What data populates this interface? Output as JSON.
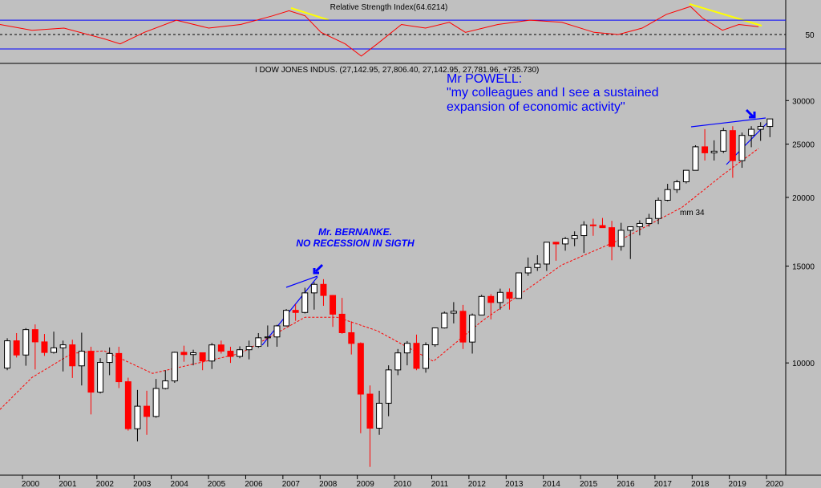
{
  "chart_data": [
    {
      "type": "line",
      "title": "Relative Strength Index(64.6214)",
      "color": "#ff0000",
      "x": [
        1999.18,
        2000.04,
        2000.9,
        2001.98,
        2002.41,
        2003.06,
        2003.92,
        2004.79,
        2005.65,
        2006.51,
        2006.95,
        2007.38,
        2007.81,
        2008.46,
        2008.89,
        2009.32,
        2009.97,
        2010.62,
        2011.26,
        2011.69,
        2012.56,
        2013.42,
        2014.28,
        2015.15,
        2015.8,
        2016.44,
        2017.09,
        2017.74,
        2018.06,
        2018.6,
        2019.04,
        2019.57
      ],
      "values": [
        64,
        56,
        59,
        44,
        37,
        53,
        70,
        59,
        64,
        76,
        83,
        76,
        53,
        37,
        20,
        37,
        64,
        59,
        67,
        53,
        64,
        70,
        67,
        53,
        50,
        59,
        78,
        89,
        73,
        56,
        64,
        61
      ],
      "xlim": [
        1999.18,
        2020.3
      ],
      "ylim": [
        11,
        98
      ],
      "yticks": [
        50
      ],
      "bands": [
        30,
        70
      ],
      "band_color": "#0000ff",
      "grid": true
    },
    {
      "type": "candlestick",
      "title": "I DOW JONES INDUS. (27,142.95, 27,806.40, 27,142.95, 27,781.96, +735.730)",
      "up_color": "#ffffff",
      "down_color": "#ff0000",
      "x": [
        1999.375,
        1999.625,
        1999.875,
        2000.125,
        2000.375,
        2000.625,
        2000.875,
        2001.125,
        2001.375,
        2001.625,
        2001.875,
        2002.125,
        2002.375,
        2002.625,
        2002.875,
        2003.125,
        2003.375,
        2003.625,
        2003.875,
        2004.125,
        2004.375,
        2004.625,
        2004.875,
        2005.125,
        2005.375,
        2005.625,
        2005.875,
        2006.125,
        2006.375,
        2006.625,
        2006.875,
        2007.125,
        2007.375,
        2007.625,
        2007.875,
        2008.125,
        2008.375,
        2008.625,
        2008.875,
        2009.125,
        2009.375,
        2009.625,
        2009.875,
        2010.125,
        2010.375,
        2010.625,
        2010.875,
        2011.125,
        2011.375,
        2011.625,
        2011.875,
        2012.125,
        2012.375,
        2012.625,
        2012.875,
        2013.125,
        2013.375,
        2013.625,
        2013.875,
        2014.125,
        2014.375,
        2014.625,
        2014.875,
        2015.125,
        2015.375,
        2015.625,
        2015.875,
        2016.125,
        2016.375,
        2016.625,
        2016.875,
        2017.125,
        2017.375,
        2017.625,
        2017.875,
        2018.125,
        2018.375,
        2018.625,
        2018.875,
        2019.125,
        2019.375,
        2019.625,
        2019.875
      ],
      "open": [
        9786,
        10970,
        10337,
        11497,
        10922,
        10448,
        10651,
        10787,
        9879,
        10502,
        8848,
        10021,
        10404,
        9243,
        7592,
        8342,
        7992,
        8985,
        9275,
        10454,
        10357,
        10435,
        10080,
        10783,
        10504,
        10275,
        10569,
        10718,
        11109,
        11150,
        11679,
        12463,
        12354,
        13409,
        13896,
        13265,
        12263,
        11350,
        10851,
        8776,
        7609,
        8447,
        9712,
        10428,
        10857,
        9774,
        10788,
        11578,
        12320,
        12414,
        10913,
        12218,
        13212,
        12880,
        13437,
        13104,
        14579,
        14910,
        15130,
        16577,
        16458,
        16827,
        17043,
        17823,
        17776,
        17620,
        16285,
        17425,
        17685,
        17930,
        18308,
        19763,
        20663,
        21350,
        22405,
        24719,
        24103,
        24271,
        26458,
        23327,
        25929,
        26600,
        26917
      ],
      "high": [
        11090,
        11330,
        11570,
        11750,
        11290,
        11400,
        10980,
        11020,
        11350,
        10700,
        10200,
        10670,
        10700,
        9400,
        8930,
        8900,
        9350,
        9700,
        10480,
        10750,
        10570,
        10450,
        10870,
        10980,
        10700,
        10720,
        10980,
        11330,
        11700,
        11730,
        12530,
        12800,
        13700,
        14020,
        14200,
        13280,
        13130,
        11900,
        10900,
        9100,
        8900,
        9900,
        10600,
        10960,
        11260,
        10900,
        11600,
        12400,
        12900,
        12750,
        12300,
        13300,
        13340,
        13650,
        13660,
        14600,
        15550,
        15700,
        16580,
        16600,
        16950,
        17350,
        18100,
        18290,
        18350,
        18130,
        17980,
        17500,
        18170,
        18670,
        19990,
        21170,
        21530,
        22420,
        24880,
        26620,
        25400,
        26770,
        26950,
        26240,
        26950,
        27400,
        27806
      ],
      "low": [
        9700,
        10230,
        9885,
        9730,
        10300,
        10400,
        9650,
        9390,
        9100,
        8060,
        8800,
        9500,
        9000,
        7530,
        7200,
        7400,
        7950,
        8950,
        9200,
        10050,
        9900,
        9700,
        9750,
        10400,
        10000,
        10200,
        10150,
        10650,
        10700,
        10700,
        11650,
        11930,
        12300,
        12500,
        12700,
        11630,
        11300,
        10360,
        7450,
        6470,
        7400,
        8000,
        9500,
        9900,
        9700,
        9600,
        10700,
        11550,
        11800,
        10600,
        10400,
        12200,
        12000,
        12500,
        12500,
        13100,
        14400,
        14700,
        14700,
        15340,
        16000,
        16300,
        15850,
        17030,
        17600,
        15370,
        16000,
        15450,
        17060,
        17700,
        17880,
        19680,
        20380,
        21200,
        22400,
        23340,
        23340,
        24080,
        21710,
        22640,
        24680,
        25340,
        25740
      ],
      "close": [
        10970,
        10337,
        11497,
        10922,
        10448,
        10651,
        10787,
        9879,
        10502,
        8848,
        10021,
        10404,
        9243,
        7592,
        8342,
        7992,
        8985,
        9275,
        10454,
        10357,
        10435,
        10080,
        10783,
        10504,
        10275,
        10569,
        10718,
        11109,
        11150,
        11679,
        12463,
        12354,
        13409,
        13896,
        13265,
        12263,
        11350,
        10851,
        8776,
        7609,
        8447,
        9712,
        10428,
        10857,
        9774,
        10788,
        11578,
        12320,
        12414,
        10913,
        12218,
        13212,
        12880,
        13437,
        13104,
        14579,
        14910,
        15130,
        16577,
        16458,
        16827,
        17043,
        17823,
        17776,
        17620,
        16285,
        17425,
        17685,
        17930,
        18308,
        19763,
        20663,
        21350,
        22405,
        24719,
        24103,
        24271,
        26458,
        23327,
        25929,
        26600,
        26917,
        27782
      ],
      "ma": {
        "name": "mm 34",
        "color": "#ff0000",
        "x": [
          1999.18,
          2000.04,
          2001.12,
          2001.98,
          2003.28,
          2005.65,
          2007.38,
          2008.24,
          2009.32,
          2010.83,
          2012.13,
          2014.28,
          2016.01,
          2017.52,
          2018.6,
          2019.57
        ],
        "values": [
          8230,
          9410,
          10410,
          10520,
          9570,
          10410,
          12110,
          12110,
          11440,
          10070,
          11910,
          15070,
          16950,
          19200,
          21960,
          24550
        ]
      },
      "xlim": [
        1999.18,
        2020.3
      ],
      "xticks": [
        2000,
        2001,
        2002,
        2003,
        2004,
        2005,
        2006,
        2007,
        2008,
        2009,
        2010,
        2011,
        2012,
        2013,
        2014,
        2015,
        2016,
        2017,
        2018,
        2019,
        2020
      ],
      "ylim": [
        6250,
        34700
      ],
      "yticks": [
        10000,
        15000,
        20000,
        25000,
        30000
      ],
      "log_scale": true,
      "annotations": [
        {
          "text": "Mr POWELL:"
        },
        {
          "text": "\"my colleagues and I see a sustained"
        },
        {
          "text": "expansion of economic activity\""
        },
        {
          "text": "Mr. BERNANKE."
        },
        {
          "text": "NO RECESSION IN SIGTH"
        }
      ]
    }
  ]
}
